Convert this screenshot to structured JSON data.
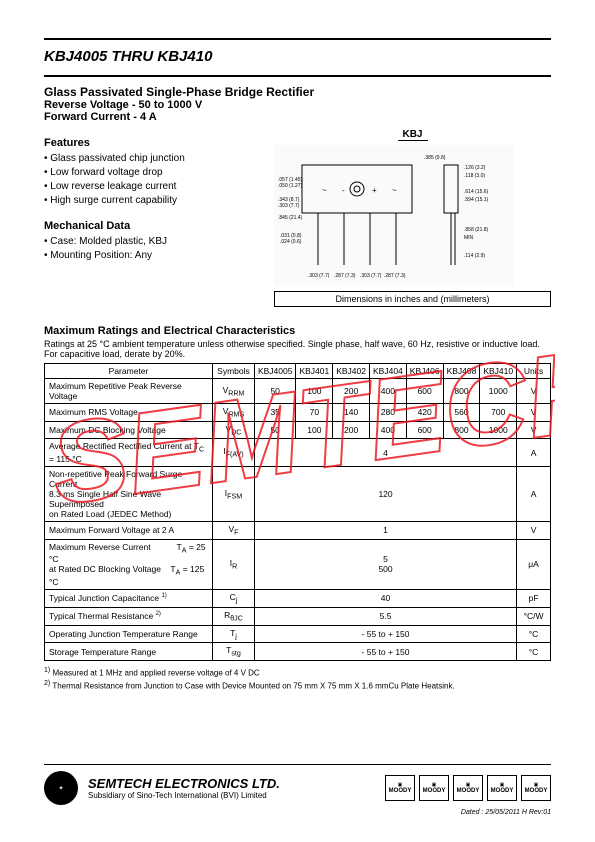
{
  "header": {
    "title": "KBJ4005 THRU KBJ410",
    "subtitle": "Glass Passivated Single-Phase Bridge Rectifier",
    "spec1": "Reverse Voltage - 50 to 1000 V",
    "spec2": "Forward Current - 4 A"
  },
  "package_label": "KBJ",
  "dim_note": "Dimensions in inches and (millimeters)",
  "features": {
    "heading": "Features",
    "items": [
      "Glass passivated chip junction",
      "Low forward voltage drop",
      "Low reverse leakage current",
      "High surge current capability"
    ]
  },
  "mechanical": {
    "heading": "Mechanical Data",
    "items": [
      "Case: Molded plastic, KBJ",
      "Mounting Position: Any"
    ]
  },
  "ratings": {
    "heading": "Maximum Ratings and Electrical Characteristics",
    "note": "Ratings at 25 °C ambient temperature unless otherwise specified. Single phase, half wave, 60 Hz, resistive or inductive load. For capacitive load, derate by 20%.",
    "columns": [
      "Parameter",
      "Symbols",
      "KBJ4005",
      "KBJ401",
      "KBJ402",
      "KBJ404",
      "KBJ406",
      "KBJ408",
      "KBJ410",
      "Units"
    ],
    "rows": [
      {
        "param": "Maximum Repetitive Peak Reverse Voltage",
        "symbol": "V<sub>RRM</sub>",
        "vals": [
          "50",
          "100",
          "200",
          "400",
          "600",
          "800",
          "1000"
        ],
        "unit": "V"
      },
      {
        "param": "Maximum RMS Voltage",
        "symbol": "V<sub>RMS</sub>",
        "vals": [
          "35",
          "70",
          "140",
          "280",
          "420",
          "560",
          "700"
        ],
        "unit": "V"
      },
      {
        "param": "Maximum DC Blocking Voltage",
        "symbol": "V<sub>DC</sub>",
        "vals": [
          "50",
          "100",
          "200",
          "400",
          "600",
          "800",
          "1000"
        ],
        "unit": "V"
      },
      {
        "param": "Average Rectified Rectified Current at T<sub>C</sub> = 115 °C",
        "symbol": "I<sub>F(AV)</sub>",
        "span": "4",
        "unit": "A"
      },
      {
        "param": "Non-repetitive Peak Forward Surge Current<br>8.3 ms Single Half Sine Wave Superimposed<br>on Rated Load (JEDEC Method)",
        "symbol": "I<sub>FSM</sub>",
        "span": "120",
        "unit": "A"
      },
      {
        "param": "Maximum Forward Voltage at 2 A",
        "symbol": "V<sub>F</sub>",
        "span": "1",
        "unit": "V"
      },
      {
        "param": "Maximum Reverse Current&nbsp;&nbsp;&nbsp;&nbsp;&nbsp;&nbsp;&nbsp;&nbsp;&nbsp;&nbsp;&nbsp;T<sub>A</sub> = 25 °C<br>at Rated DC Blocking Voltage&nbsp;&nbsp;&nbsp;&nbsp;T<sub>A</sub> = 125 °C",
        "symbol": "I<sub>R</sub>",
        "span": "5<br>500",
        "unit": "μA"
      },
      {
        "param": "Typical Junction Capacitance <sup>1)</sup>",
        "symbol": "C<sub>j</sub>",
        "span": "40",
        "unit": "pF"
      },
      {
        "param": "Typical Thermal Resistance <sup>2)</sup>",
        "symbol": "R<sub>θJC</sub>",
        "span": "5.5",
        "unit": "°C/W"
      },
      {
        "param": "Operating Junction Temperature Range",
        "symbol": "T<sub>j</sub>",
        "span": "- 55 to + 150",
        "unit": "°C"
      },
      {
        "param": "Storage Temperature Range",
        "symbol": "T<sub>stg</sub>",
        "span": "- 55 to + 150",
        "unit": "°C"
      }
    ]
  },
  "footnotes": {
    "f1": "Measured at 1 MHz and applied reverse voltage of 4 V DC",
    "f2": "Thermal Resistance from Junction to Case with Device Mounted on 75 mm X 75 mm X 1.6 mmCu Plate Heatsink."
  },
  "footer": {
    "company": "SEMTECH ELECTRONICS LTD.",
    "subsidiary": "Subsidiary of Sino-Tech International (BVI) Limited",
    "certs": [
      "MOODY",
      "MOODY",
      "MOODY",
      "MOODY",
      "MOODY"
    ],
    "date": "Dated : 25/05/2011 H    Rev:01"
  },
  "styling": {
    "page_bg": "#ffffff",
    "text_color": "#000000",
    "watermark_color": "#ed1c24",
    "watermark_opacity": 0.85
  }
}
